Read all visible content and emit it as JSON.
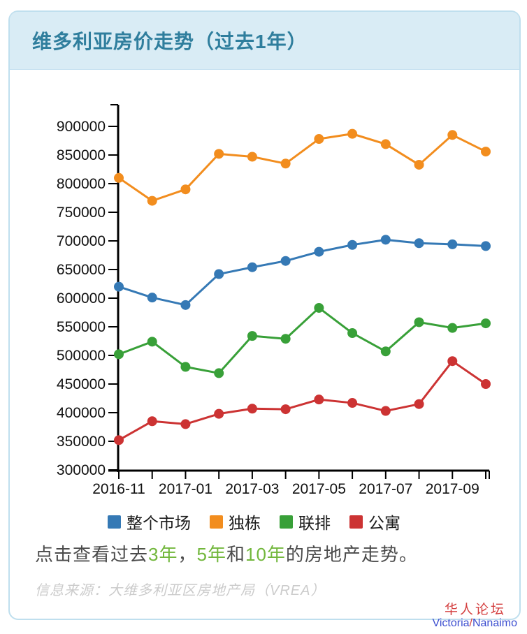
{
  "page": {
    "title": "维多利亚房价走势（过去1年）"
  },
  "chart_data": {
    "type": "line",
    "title": "维多利亚房价走势（过去1年）",
    "x": [
      "2016-11",
      "2016-12",
      "2017-01",
      "2017-02",
      "2017-03",
      "2017-04",
      "2017-05",
      "2017-06",
      "2017-07",
      "2017-08",
      "2017-09",
      "2017-10"
    ],
    "x_tick_labels": [
      "2016-11",
      "2017-01",
      "2017-03",
      "2017-05",
      "2017-07",
      "2017-09"
    ],
    "x_label_every": 2,
    "ylim": [
      300000,
      900000
    ],
    "ytick_step": 50000,
    "grid": false,
    "legend_position": "bottom",
    "axis_color": "#000000",
    "series": [
      {
        "name": "整个市场",
        "color": "#3579b5",
        "values": [
          620000,
          601000,
          588000,
          642000,
          654000,
          665000,
          681000,
          693000,
          702000,
          696000,
          694000,
          691000
        ]
      },
      {
        "name": "独栋",
        "color": "#f28d1e",
        "values": [
          810000,
          770000,
          790000,
          852000,
          847000,
          835000,
          878000,
          887000,
          869000,
          833000,
          885000,
          856000
        ]
      },
      {
        "name": "联排",
        "color": "#38a038",
        "values": [
          502000,
          524000,
          480000,
          469000,
          534000,
          529000,
          583000,
          539000,
          507000,
          558000,
          548000,
          556000
        ]
      },
      {
        "name": "公寓",
        "color": "#cc3333",
        "values": [
          352000,
          385000,
          380000,
          398000,
          407000,
          406000,
          423000,
          417000,
          403000,
          415000,
          490000,
          450000
        ]
      }
    ]
  },
  "cta": {
    "segments": [
      {
        "text": "点击查看过去"
      },
      {
        "text": "3年"
      },
      {
        "text": "，"
      },
      {
        "text": "5年"
      },
      {
        "text": "和"
      },
      {
        "text": "10年"
      },
      {
        "text": "的房地产走势。"
      }
    ],
    "link_color": "#72b73c"
  },
  "source": "信息来源：大维多利亚区房地产局（VREA）",
  "watermark": {
    "line1": "华人论坛",
    "line2_a": "Victoria",
    "slash": "/",
    "line2_b": "Nanaimo"
  }
}
